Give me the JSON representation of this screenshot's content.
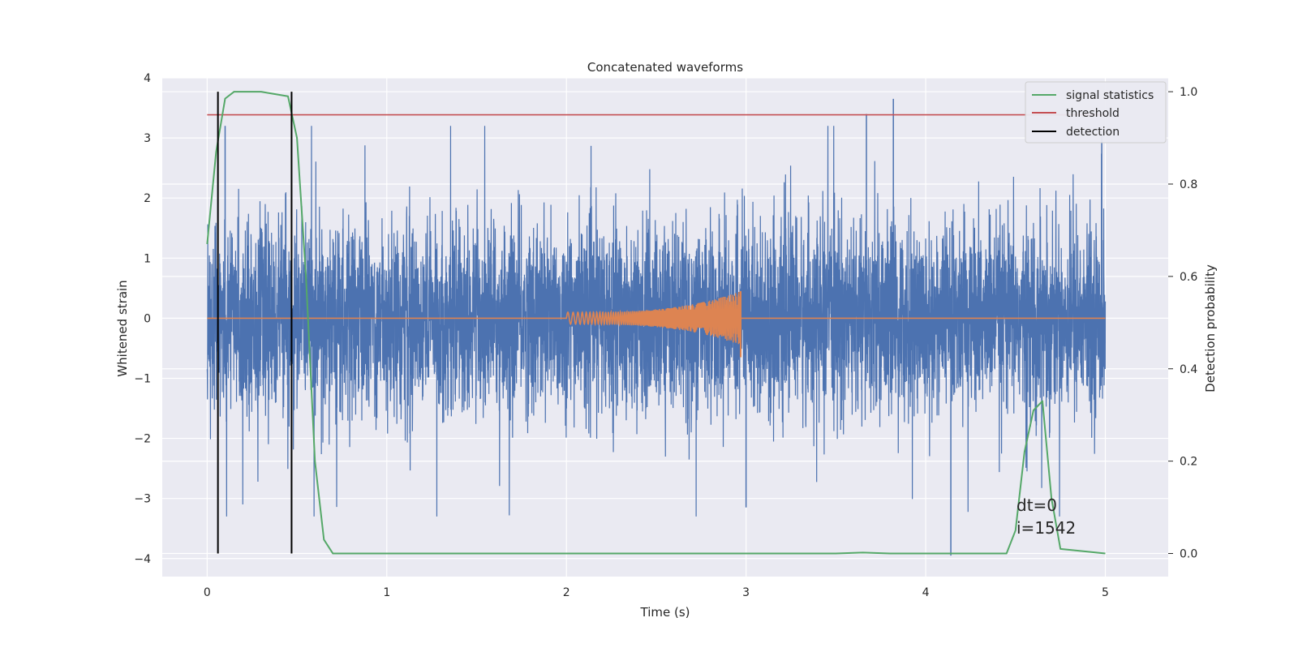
{
  "chart_data": {
    "type": "line",
    "title": "Concatenated waveforms",
    "xlabel": "Time (s)",
    "ylabel": "Whitened strain",
    "y2label": "Detection probability",
    "xlim": [
      -0.25,
      5.35
    ],
    "ylim": [
      -4.3,
      4.0
    ],
    "y2lim": [
      -0.05,
      1.03
    ],
    "x_ticks": [
      0,
      1,
      2,
      3,
      4,
      5
    ],
    "y_ticks": [
      -4,
      -3,
      -2,
      -1,
      0,
      1,
      2,
      3,
      4
    ],
    "y2_ticks": [
      0.0,
      0.2,
      0.4,
      0.6,
      0.8,
      1.0
    ],
    "x_tick_labels": [
      "0",
      "1",
      "2",
      "3",
      "4",
      "5"
    ],
    "y_tick_labels": [
      "−4",
      "−3",
      "−2",
      "−1",
      "0",
      "1",
      "2",
      "3",
      "4"
    ],
    "y2_tick_labels": [
      "0.0",
      "0.2",
      "0.4",
      "0.6",
      "0.8",
      "1.0"
    ],
    "grid": true,
    "legend_position": "top-right",
    "background": "#eaeaf2",
    "series": [
      {
        "key": "strain",
        "color": "#4c72b0",
        "description": "noisy whitened strain, t from 0 to 5 s",
        "x_range": [
          0,
          5
        ],
        "y_core_amplitude": 0.9,
        "y_peak_max": 3.65,
        "y_peak_min": -3.95
      },
      {
        "key": "injection",
        "color": "#dd8452",
        "description": "chirp waveform, zero outside 2.0–2.97 s",
        "x_range": [
          0,
          5
        ],
        "chirp_start": 2.0,
        "chirp_end": 2.97,
        "amplitude_start": 0.1,
        "amplitude_end": 0.45,
        "min_end": -0.65
      },
      {
        "key": "signal_statistics",
        "name": "signal statistics",
        "color": "#55a868",
        "axis": "right",
        "x": [
          0.0,
          0.05,
          0.1,
          0.15,
          0.3,
          0.45,
          0.5,
          0.55,
          0.6,
          0.65,
          0.7,
          1.0,
          2.0,
          3.0,
          3.5,
          3.65,
          3.8,
          4.0,
          4.45,
          4.5,
          4.55,
          4.6,
          4.65,
          4.7,
          4.75,
          5.0
        ],
        "y": [
          0.67,
          0.87,
          0.985,
          1.0,
          1.0,
          0.99,
          0.9,
          0.6,
          0.2,
          0.03,
          0.0,
          0.0,
          0.0,
          0.0,
          0.0,
          0.002,
          0.0,
          0.0,
          0.0,
          0.05,
          0.22,
          0.31,
          0.33,
          0.12,
          0.01,
          0.0
        ]
      },
      {
        "key": "threshold",
        "name": "threshold",
        "color": "#c44e52",
        "axis": "right",
        "x": [
          0,
          5
        ],
        "y": [
          0.95,
          0.95
        ]
      },
      {
        "key": "detection",
        "name": "detection",
        "color": "#000000",
        "axis": "right",
        "x": [
          0.06,
          0.47
        ],
        "y_range": [
          0.0,
          1.0
        ]
      }
    ],
    "annotations": [
      "dt=0",
      "i=1542"
    ]
  }
}
